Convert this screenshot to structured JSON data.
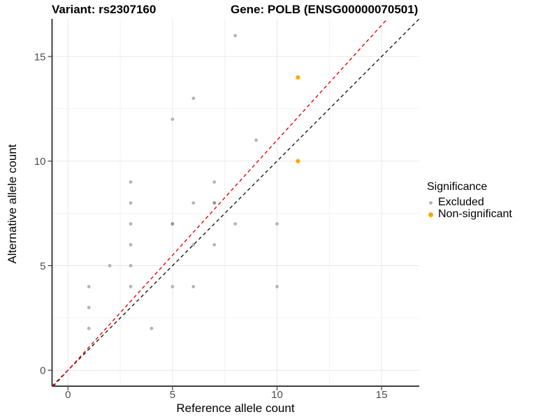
{
  "figure": {
    "title_left": "Variant: rs2307160",
    "title_right": "Gene: POLB (ENSG00000070501)"
  },
  "chart_data": {
    "type": "scatter",
    "title": "Variant: rs2307160   Gene: POLB (ENSG00000070501)",
    "xlabel": "Reference allele count",
    "ylabel": "Alternative allele count",
    "xlim": [
      -0.76,
      16.8
    ],
    "ylim": [
      -0.76,
      16.8
    ],
    "x_ticks": [
      0,
      5,
      10,
      15
    ],
    "y_ticks": [
      0,
      5,
      10,
      15
    ],
    "minor_gridlines": [
      2.5,
      7.5,
      12.5
    ],
    "grid": "on",
    "colors": {
      "excluded_point": "#b4b4b4",
      "overplotted_point": "#8f8f8f",
      "non_significant_point": "#FFA500",
      "identity_line": "#1a1a1a",
      "fit_line": "#ee0000",
      "axis_line": "#404040",
      "tick_label": "#4d4d4d",
      "major_grid": "#e7e7e7",
      "minor_grid": "#f2f2f2"
    },
    "legend": {
      "title": "Significance",
      "position": "right",
      "entries": [
        {
          "label": "Excluded",
          "color": "#b4b4b4"
        },
        {
          "label": "Non-significant",
          "color": "#FFA500"
        }
      ]
    },
    "series": [
      {
        "name": "Excluded",
        "color": "#b4b4b4",
        "overlap_color": "#8f8f8f",
        "point_radius": 2.4,
        "points": [
          [
            1,
            2
          ],
          [
            1,
            3
          ],
          [
            1,
            4
          ],
          [
            2,
            5
          ],
          [
            3,
            4
          ],
          [
            3,
            5
          ],
          [
            3,
            6
          ],
          [
            3,
            7
          ],
          [
            3,
            8
          ],
          [
            3,
            9
          ],
          [
            4,
            2
          ],
          [
            5,
            4
          ],
          [
            5,
            7,
            1
          ],
          [
            5,
            12
          ],
          [
            6,
            4
          ],
          [
            6,
            6
          ],
          [
            6,
            8
          ],
          [
            6,
            13
          ],
          [
            7,
            6
          ],
          [
            7,
            8,
            1
          ],
          [
            7,
            9
          ],
          [
            8,
            7
          ],
          [
            8,
            16
          ],
          [
            9,
            11
          ],
          [
            10,
            4
          ],
          [
            10,
            7
          ]
        ]
      },
      {
        "name": "Non-significant",
        "color": "#FFA500",
        "point_radius": 3.1,
        "points": [
          [
            11,
            10
          ],
          [
            11,
            14
          ]
        ]
      }
    ],
    "lines": [
      {
        "name": "identity-line",
        "color": "#1a1a1a",
        "style": "dashed",
        "slope": 1,
        "intercept": 0
      },
      {
        "name": "expected-ratio-line",
        "color": "#ee0000",
        "style": "dashed",
        "slope": 1.1,
        "intercept": 0
      }
    ]
  }
}
